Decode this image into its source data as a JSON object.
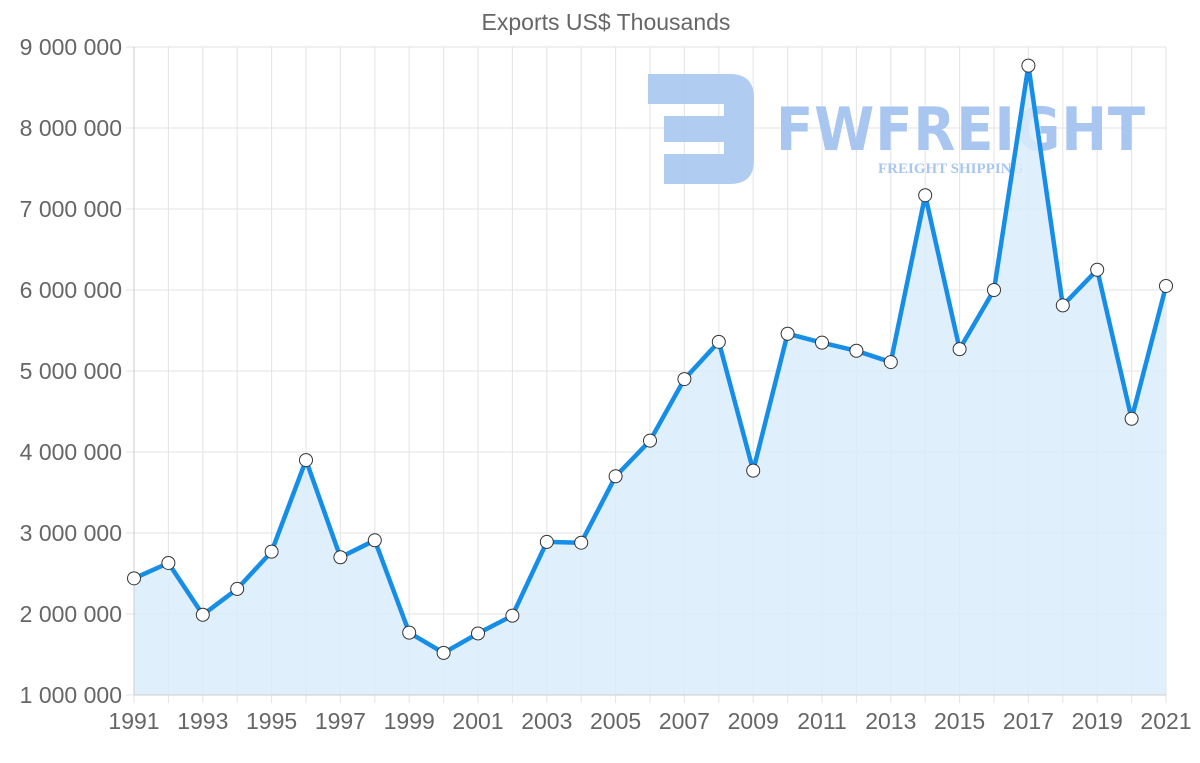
{
  "chart_data": {
    "type": "area",
    "title": "Exports US$ Thousands",
    "xlabel": "",
    "ylabel": "",
    "x": [
      1991,
      1992,
      1993,
      1994,
      1995,
      1996,
      1997,
      1998,
      1999,
      2000,
      2001,
      2002,
      2003,
      2004,
      2005,
      2006,
      2007,
      2008,
      2009,
      2010,
      2011,
      2012,
      2013,
      2014,
      2015,
      2016,
      2017,
      2018,
      2019,
      2020,
      2021
    ],
    "series": [
      {
        "name": "Exports US$ Thousands",
        "values": [
          2440000,
          2630000,
          1990000,
          2310000,
          2770000,
          3900000,
          2700000,
          2910000,
          1770000,
          1520000,
          1760000,
          1980000,
          2890000,
          2880000,
          3700000,
          4140000,
          4900000,
          5360000,
          3770000,
          5460000,
          5350000,
          5250000,
          5110000,
          7170000,
          5270000,
          6000000,
          8770000,
          5810000,
          6250000,
          4410000,
          6050000
        ]
      }
    ],
    "ylim": [
      1000000,
      9000000
    ],
    "y_ticks": [
      "1 000 000",
      "2 000 000",
      "3 000 000",
      "4 000 000",
      "5 000 000",
      "6 000 000",
      "7 000 000",
      "8 000 000",
      "9 000 000"
    ],
    "x_tick_labels": [
      "1991",
      "1993",
      "1995",
      "1997",
      "1999",
      "2001",
      "2003",
      "2005",
      "2007",
      "2009",
      "2011",
      "2013",
      "2015",
      "2017",
      "2019",
      "2021"
    ],
    "grid": true,
    "legend": "none",
    "colors": {
      "line": "#168ee8",
      "fill": "#d9ecfc",
      "point_fill": "#ffffff",
      "point_stroke": "#333333",
      "grid": "#e3e3e3",
      "text": "#666666"
    }
  },
  "watermark": {
    "brand": "FWFREIGHT",
    "tagline": "FREIGHT SHIPPING",
    "color": "#a9c6f0"
  }
}
